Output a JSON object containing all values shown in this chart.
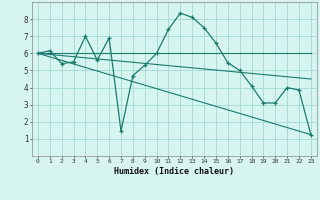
{
  "xlabel": "Humidex (Indice chaleur)",
  "bg_color": "#d6f5f0",
  "grid_color": "#aaddd8",
  "line_color": "#1a7a6e",
  "xlim": [
    -0.5,
    23.5
  ],
  "ylim": [
    0,
    9
  ],
  "xticks": [
    0,
    1,
    2,
    3,
    4,
    5,
    6,
    7,
    8,
    9,
    10,
    11,
    12,
    13,
    14,
    15,
    16,
    17,
    18,
    19,
    20,
    21,
    22,
    23
  ],
  "yticks": [
    1,
    2,
    3,
    4,
    5,
    6,
    7,
    8
  ],
  "series2_x": [
    0,
    1,
    2,
    3,
    4,
    5,
    6,
    7,
    8,
    9,
    10,
    11,
    12,
    13,
    14,
    15,
    16,
    17,
    18,
    19,
    20,
    21,
    22,
    23
  ],
  "series2_y": [
    6.0,
    6.15,
    5.4,
    5.5,
    7.0,
    5.6,
    6.9,
    1.45,
    4.7,
    5.3,
    6.0,
    7.4,
    8.35,
    8.1,
    7.5,
    6.6,
    5.45,
    5.0,
    4.1,
    3.1,
    3.1,
    4.0,
    3.85,
    1.25
  ],
  "line1_x": [
    0,
    23
  ],
  "line1_y": [
    6.0,
    6.0
  ],
  "line2_x": [
    0,
    23
  ],
  "line2_y": [
    6.0,
    4.5
  ],
  "line3_x": [
    0,
    23
  ],
  "line3_y": [
    6.0,
    1.25
  ]
}
